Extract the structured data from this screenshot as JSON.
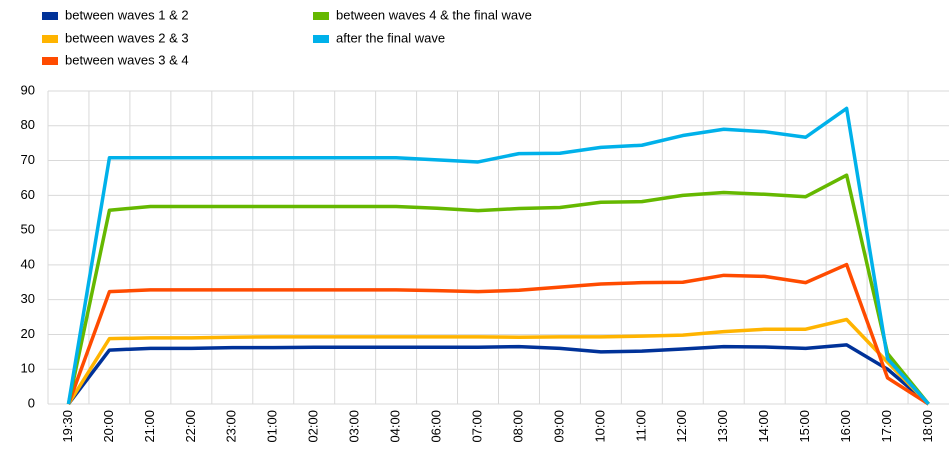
{
  "chart_data": {
    "type": "line",
    "categories": [
      "19:30",
      "20:00",
      "21:00",
      "22:00",
      "23:00",
      "01:00",
      "02:00",
      "03:00",
      "04:00",
      "06:00",
      "07:00",
      "08:00",
      "09:00",
      "10:00",
      "11:00",
      "12:00",
      "13:00",
      "14:00",
      "15:00",
      "16:00",
      "17:00",
      "18:00"
    ],
    "series": [
      {
        "name": "between waves 1 & 2",
        "color": "#003299",
        "values": [
          0,
          15.5,
          16,
          16,
          16.2,
          16.2,
          16.3,
          16.3,
          16.3,
          16.3,
          16.3,
          16.5,
          16,
          15,
          15.2,
          15.8,
          16.5,
          16.4,
          16,
          17,
          10,
          0
        ]
      },
      {
        "name": "between waves 2 & 3",
        "color": "#ffb400",
        "values": [
          0,
          18.8,
          19,
          19,
          19.2,
          19.3,
          19.3,
          19.3,
          19.3,
          19.3,
          19.3,
          19.2,
          19.3,
          19.3,
          19.5,
          19.8,
          20.8,
          21.5,
          21.5,
          24.3,
          12,
          0
        ]
      },
      {
        "name": "between waves 3 & 4",
        "color": "#ff4b00",
        "values": [
          0,
          32.3,
          32.8,
          32.8,
          32.8,
          32.8,
          32.8,
          32.8,
          32.8,
          32.6,
          32.3,
          32.7,
          33.6,
          34.5,
          34.9,
          35,
          37,
          36.7,
          34.9,
          40.1,
          7.5,
          0
        ]
      },
      {
        "name": "between waves 4 & the final wave",
        "color": "#65b800",
        "values": [
          0,
          55.7,
          56.8,
          56.8,
          56.8,
          56.8,
          56.8,
          56.8,
          56.8,
          56.3,
          55.6,
          56.2,
          56.5,
          58,
          58.2,
          60,
          60.8,
          60.3,
          59.6,
          65.8,
          14.5,
          0
        ]
      },
      {
        "name": "after the final wave",
        "color": "#00b1ea",
        "values": [
          0,
          70.8,
          70.8,
          70.8,
          70.8,
          70.8,
          70.8,
          70.8,
          70.8,
          70.2,
          69.6,
          72,
          72.1,
          73.8,
          74.4,
          77.2,
          79,
          78.3,
          76.7,
          85,
          13,
          0
        ]
      }
    ],
    "ylim": [
      0,
      90
    ],
    "yticks": [
      0,
      10,
      20,
      30,
      40,
      50,
      60,
      70,
      80,
      90
    ],
    "grid": true
  }
}
